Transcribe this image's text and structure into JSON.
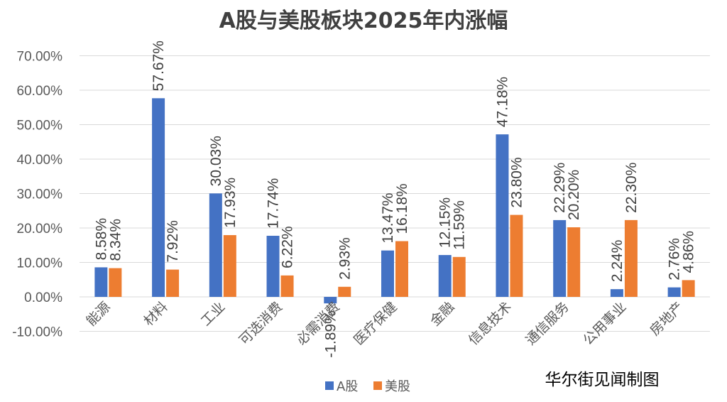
{
  "chart_data": {
    "type": "bar",
    "title": "A股与美股板块2025年内涨幅",
    "categories": [
      "能源",
      "材料",
      "工业",
      "可选消费",
      "必需消费",
      "医疗保健",
      "金融",
      "信息技术",
      "通信服务",
      "公用事业",
      "房地产"
    ],
    "series": [
      {
        "name": "A股",
        "color": "#4472C4",
        "values": [
          8.58,
          57.67,
          30.03,
          17.74,
          -1.89,
          13.47,
          12.15,
          47.18,
          22.29,
          2.24,
          2.76
        ],
        "labels": [
          "8.58%",
          "57.67%",
          "30.03%",
          "17.74%",
          "-1.89%",
          "13.47%",
          "12.15%",
          "47.18%",
          "22.29%",
          "2.24%",
          "2.76%"
        ]
      },
      {
        "name": "美股",
        "color": "#ED7D31",
        "values": [
          8.34,
          7.92,
          17.93,
          6.22,
          2.93,
          16.18,
          11.59,
          23.8,
          20.2,
          22.3,
          4.86
        ],
        "labels": [
          "8.34%",
          "7.92%",
          "17.93%",
          "6.22%",
          "2.93%",
          "16.18%",
          "11.59%",
          "23.80%",
          "20.20%",
          "22.30%",
          "4.86%"
        ]
      }
    ],
    "ylim": [
      -10,
      70
    ],
    "yticks": [
      -10,
      0,
      10,
      20,
      30,
      40,
      50,
      60,
      70
    ],
    "ytick_labels": [
      "-10.00%",
      "0.00%",
      "10.00%",
      "20.00%",
      "30.00%",
      "40.00%",
      "50.00%",
      "60.00%",
      "70.00%"
    ],
    "grid": true,
    "legend_position": "bottom"
  },
  "credit": "华尔街见闻制图"
}
